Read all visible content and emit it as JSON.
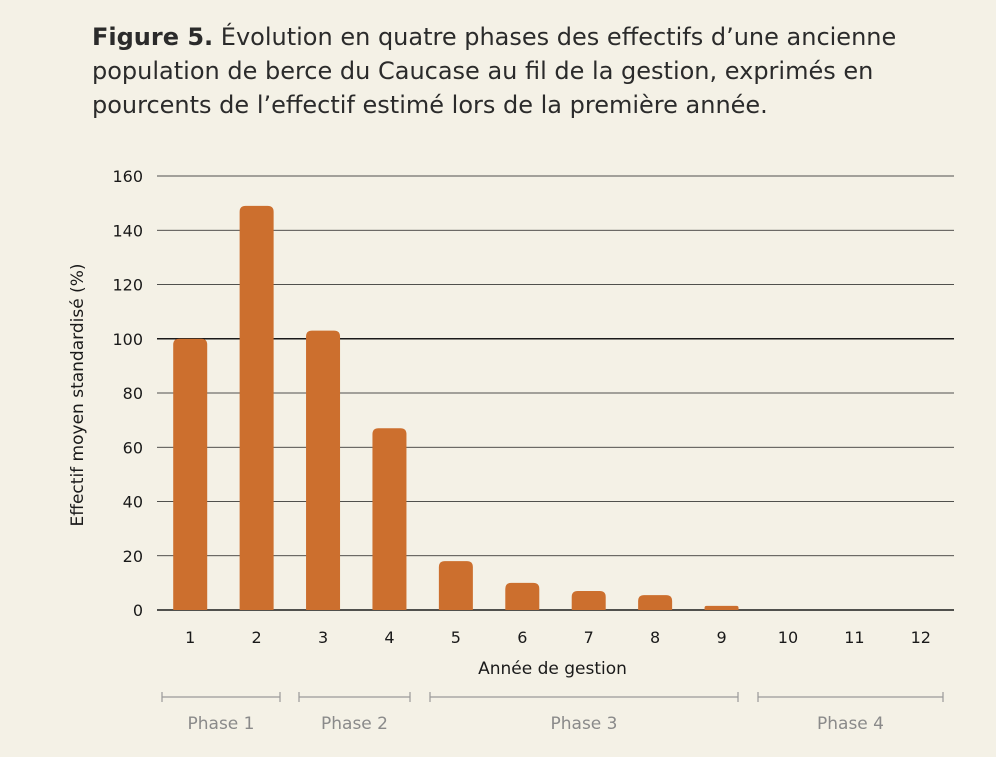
{
  "caption": {
    "label": "Figure 5.",
    "text": " Évolution en quatre phases des effectifs d’une ancienne population de berce du Caucase au fil de la gestion, exprimés en pourcents de l’effectif estimé lors de la première année."
  },
  "chart_data": {
    "type": "bar",
    "categories": [
      "1",
      "2",
      "3",
      "4",
      "5",
      "6",
      "7",
      "8",
      "9",
      "10",
      "11",
      "12"
    ],
    "values": [
      100,
      149,
      103,
      67,
      18,
      10,
      7,
      5.5,
      1.5,
      0,
      0,
      0
    ],
    "xlabel": "Année de gestion",
    "ylabel": "Effectif moyen standardisé (%)",
    "ylim": [
      0,
      160
    ],
    "yticks": [
      0,
      20,
      40,
      60,
      80,
      100,
      120,
      140,
      160
    ],
    "grid": true,
    "reference_line": 100,
    "bar_color": "#cc6f2e",
    "phases": [
      {
        "label": "Phase 1",
        "from": "1",
        "to": "2"
      },
      {
        "label": "Phase 2",
        "from": "3",
        "to": "4"
      },
      {
        "label": "Phase 3",
        "from": "5",
        "to": "9"
      },
      {
        "label": "Phase 4",
        "from": "10",
        "to": "12"
      }
    ]
  }
}
